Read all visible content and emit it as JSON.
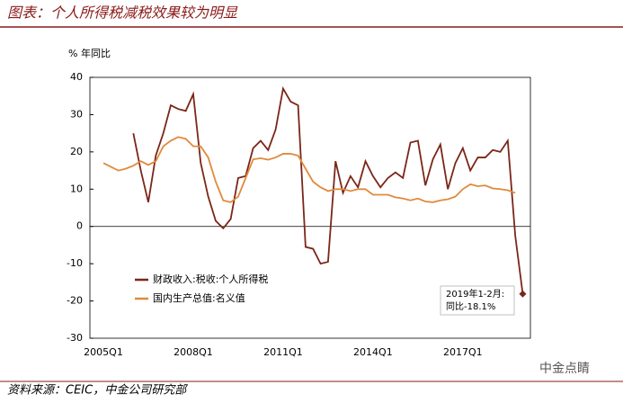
{
  "chart_data": {
    "type": "line",
    "title": "图表：个人所得税减税效果较为明显",
    "y_label": "% 年同比",
    "categories": [
      "2005Q1",
      null,
      null,
      null,
      null,
      null,
      null,
      null,
      null,
      null,
      null,
      null,
      "2008Q1",
      null,
      null,
      null,
      null,
      null,
      null,
      null,
      null,
      null,
      null,
      null,
      "2011Q1",
      null,
      null,
      null,
      null,
      null,
      null,
      null,
      null,
      null,
      null,
      null,
      "2014Q1",
      null,
      null,
      null,
      null,
      null,
      null,
      null,
      null,
      null,
      null,
      null,
      "2017Q1",
      null,
      null,
      null,
      null,
      null,
      null,
      null,
      null
    ],
    "series": [
      {
        "name": "财政收入:税收:个人所得税",
        "color": "#7b2618",
        "values": [
          null,
          null,
          null,
          null,
          25,
          15,
          6.5,
          19,
          25,
          32.5,
          31.5,
          31,
          35.5,
          17,
          8,
          1.5,
          -0.5,
          2,
          13,
          13.5,
          21,
          23,
          20.5,
          26,
          37,
          33.5,
          32.5,
          -5.5,
          -6,
          -10,
          -9.5,
          17.5,
          9,
          13.5,
          10.5,
          17.5,
          13.5,
          10.5,
          13,
          14.5,
          13,
          22.5,
          23,
          11,
          18,
          22,
          10,
          17,
          21,
          15,
          18.5,
          18.5,
          20.5,
          20,
          23,
          -2.5,
          -18.1
        ]
      },
      {
        "name": "国内生产总值:名义值",
        "color": "#e08a3c",
        "values": [
          17,
          16,
          15,
          15.5,
          16.3,
          17.5,
          16.5,
          17.5,
          21.5,
          23,
          24,
          23.5,
          21.5,
          21.5,
          18.5,
          12,
          7,
          6.5,
          8,
          13,
          18,
          18.3,
          17.9,
          18.5,
          19.5,
          19.5,
          19,
          15.5,
          12,
          10.5,
          9.5,
          10,
          10,
          9.5,
          10,
          10,
          8.5,
          8.5,
          8.5,
          7.8,
          7.5,
          7,
          7.5,
          6.7,
          6.5,
          7,
          7.3,
          8,
          10,
          11.3,
          10.8,
          11,
          10.2,
          10,
          9.7,
          9,
          null
        ]
      }
    ],
    "ylim": [
      -30,
      40
    ],
    "yticks": [
      -30,
      -20,
      -10,
      0,
      10,
      20,
      30,
      40
    ],
    "grid": false,
    "legend": "lower left",
    "annotation": [
      "2019年1-2月:",
      "同比-18.1%"
    ],
    "source": "资料来源：CEIC，中金公司研究部",
    "watermark": "中金点睛"
  }
}
